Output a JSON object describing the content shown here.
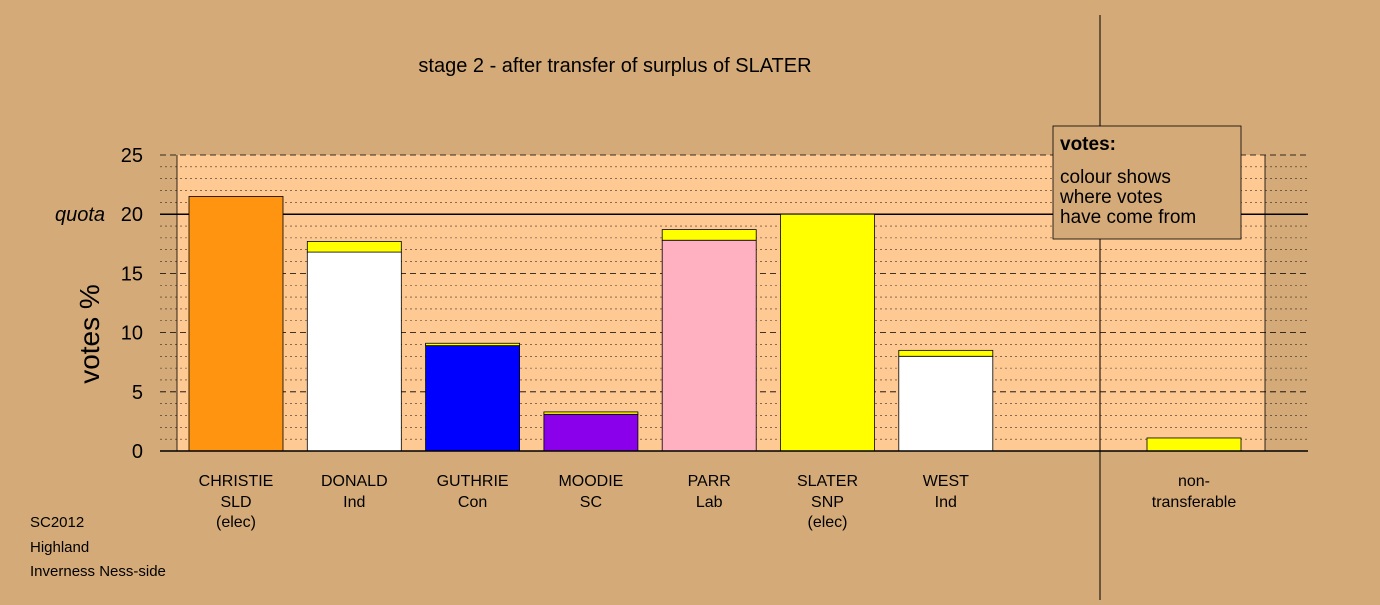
{
  "chart_data": {
    "type": "bar",
    "title": "stage 2 - after transfer of surplus of SLATER",
    "ylabel": "votes %",
    "ylim": [
      0,
      25
    ],
    "yticks": [
      0,
      5,
      10,
      15,
      20,
      25
    ],
    "minor_step": 1,
    "quota": {
      "label": "quota",
      "value": 20
    },
    "grid": true,
    "stacked": true,
    "candidates": [
      {
        "name": "CHRISTIE",
        "party": "SLD",
        "status": "(elec)",
        "segments": [
          {
            "from": "SLD",
            "value": 21.5,
            "color": "#ff9410"
          }
        ]
      },
      {
        "name": "DONALD",
        "party": "Ind",
        "status": "",
        "segments": [
          {
            "from": "Ind",
            "value": 16.8,
            "color": "#ffffff"
          },
          {
            "from": "SNP",
            "value": 0.9,
            "color": "#ffff00"
          }
        ]
      },
      {
        "name": "GUTHRIE",
        "party": "Con",
        "status": "",
        "segments": [
          {
            "from": "Con",
            "value": 8.9,
            "color": "#0000ff"
          },
          {
            "from": "SNP",
            "value": 0.2,
            "color": "#ffff00"
          }
        ]
      },
      {
        "name": "MOODIE",
        "party": "SC",
        "status": "",
        "segments": [
          {
            "from": "SC",
            "value": 3.1,
            "color": "#8a00ea"
          },
          {
            "from": "SNP",
            "value": 0.2,
            "color": "#ffff00"
          }
        ]
      },
      {
        "name": "PARR",
        "party": "Lab",
        "status": "",
        "segments": [
          {
            "from": "Lab",
            "value": 17.8,
            "color": "#ffb1c2"
          },
          {
            "from": "SNP",
            "value": 0.9,
            "color": "#ffff00"
          }
        ]
      },
      {
        "name": "SLATER",
        "party": "SNP",
        "status": "(elec)",
        "segments": [
          {
            "from": "SNP",
            "value": 20.0,
            "color": "#ffff00"
          }
        ]
      },
      {
        "name": "WEST",
        "party": "Ind",
        "status": "",
        "segments": [
          {
            "from": "Ind",
            "value": 8.0,
            "color": "#ffffff"
          },
          {
            "from": "SNP",
            "value": 0.5,
            "color": "#ffff00"
          }
        ]
      }
    ],
    "non_transferable": {
      "label_line1": "non-",
      "label_line2": "transferable",
      "value": 1.1,
      "color": "#ffff00"
    },
    "legend": {
      "placement": "top-right",
      "title": "votes:",
      "lines": [
        "colour shows",
        "where votes",
        "have come from"
      ]
    }
  },
  "footer": {
    "line1": "SC2012",
    "line2": "Highland",
    "line3": "Inverness Ness-side"
  },
  "colors": {
    "background": "#d4aa78",
    "plot_area": "#ffc994"
  }
}
